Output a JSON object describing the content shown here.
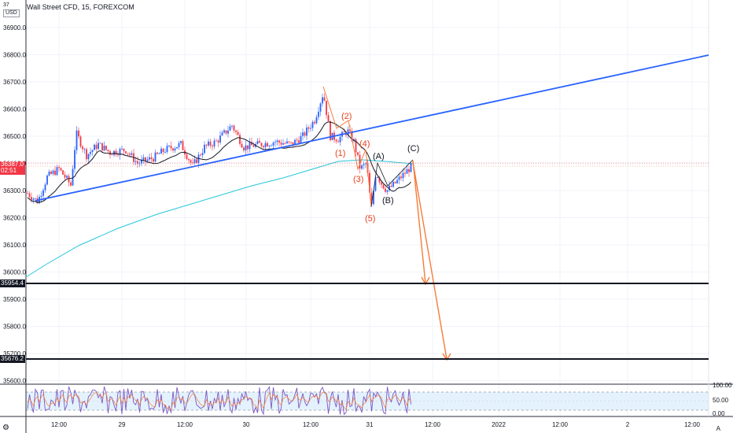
{
  "header": {
    "symbol_title": "Wall Street CFD, 15, FOREXCOM",
    "currency_top": "37",
    "currency": "USD"
  },
  "price_axis": {
    "labels": [
      "36900.0",
      "36800.0",
      "36700.0",
      "36600.0",
      "36500.0",
      "36400.0",
      "36300.0",
      "36200.0",
      "36100.0",
      "36000.0",
      "35900.0",
      "35800.0",
      "35700.0",
      "35600.0"
    ]
  },
  "current_price": {
    "value": "36387.0",
    "countdown": "02:51",
    "color": "#f23645"
  },
  "levels": [
    {
      "label": "35954.4",
      "value": 35954.4
    },
    {
      "label": "35676.2",
      "value": 35676.2
    }
  ],
  "time_axis": {
    "labels": [
      "12:00",
      "29",
      "12:00",
      "30",
      "12:00",
      "31",
      "12:00",
      "2022",
      "12:00",
      "2",
      "12:00"
    ]
  },
  "wave_labels": {
    "impulse": [
      "(1)",
      "(2)",
      "(3)",
      "(4)",
      "(5)"
    ],
    "corrective": [
      "(A)",
      "(B)",
      "(C)"
    ]
  },
  "oscillator": {
    "axis_labels": [
      "100.00",
      "50.00",
      "0.00"
    ],
    "upper_band": 80,
    "lower_band": 20
  },
  "footer": {
    "settings_icon": "gear-icon",
    "auto_label": "A"
  },
  "colors": {
    "up": "#2962ff",
    "down": "#f23645",
    "trendline": "#2962ff",
    "ma_fast": "#131722",
    "ma_slow": "#26c6da",
    "projection": "#f57c3a",
    "wave_text": "#e8411b",
    "rsi_fill": "#e3f2fd"
  }
}
